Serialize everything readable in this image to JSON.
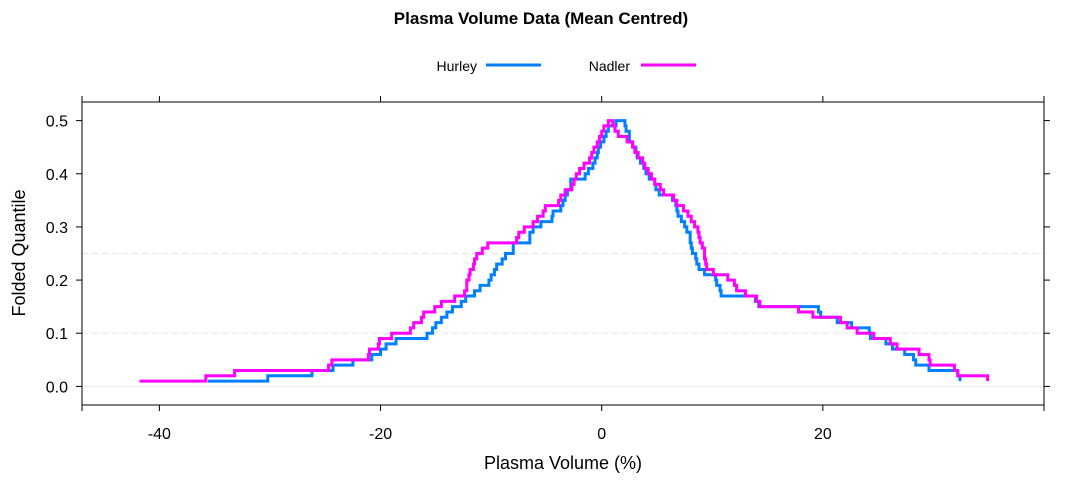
{
  "chart_data": {
    "type": "line",
    "title": "Plasma Volume Data (Mean Centred)",
    "xlabel": "Plasma Volume (%)",
    "ylabel": "Folded Quantile",
    "xlim": [
      -47,
      40
    ],
    "ylim": [
      -0.035,
      0.535
    ],
    "x_ticks": [
      -40,
      -20,
      0,
      20
    ],
    "y_ticks": [
      0.0,
      0.1,
      0.2,
      0.3,
      0.4,
      0.5
    ],
    "x_tick_labels": [
      "-40",
      "-20",
      "0",
      "20"
    ],
    "y_tick_labels": [
      "0.0",
      "0.1",
      "0.2",
      "0.3",
      "0.4",
      "0.5"
    ],
    "reference_lines_y": [
      0,
      0.1,
      0.25
    ],
    "legend_position": "top",
    "colors": {
      "Hurley": "#0080ff",
      "Nadler": "#ff00ff",
      "reference": "#e6e6e6",
      "axis": "#000000"
    },
    "series": [
      {
        "name": "Hurley",
        "points": [
          [
            -35.6,
            0.01
          ],
          [
            -30.2,
            0.02
          ],
          [
            -26.2,
            0.03
          ],
          [
            -24.3,
            0.04
          ],
          [
            -22.5,
            0.05
          ],
          [
            -20.8,
            0.06
          ],
          [
            -20.0,
            0.07
          ],
          [
            -19.5,
            0.08
          ],
          [
            -18.6,
            0.09
          ],
          [
            -15.8,
            0.1
          ],
          [
            -15.3,
            0.11
          ],
          [
            -15.0,
            0.12
          ],
          [
            -14.5,
            0.13
          ],
          [
            -14.0,
            0.14
          ],
          [
            -13.5,
            0.15
          ],
          [
            -12.7,
            0.16
          ],
          [
            -12.3,
            0.17
          ],
          [
            -11.5,
            0.18
          ],
          [
            -11.0,
            0.19
          ],
          [
            -10.2,
            0.2
          ],
          [
            -10.0,
            0.21
          ],
          [
            -9.7,
            0.22
          ],
          [
            -9.5,
            0.23
          ],
          [
            -9.0,
            0.24
          ],
          [
            -8.7,
            0.25
          ],
          [
            -8.0,
            0.26
          ],
          [
            -8.0,
            0.27
          ],
          [
            -6.5,
            0.28
          ],
          [
            -6.5,
            0.29
          ],
          [
            -6.2,
            0.3
          ],
          [
            -5.5,
            0.31
          ],
          [
            -4.5,
            0.32
          ],
          [
            -4.4,
            0.33
          ],
          [
            -3.7,
            0.34
          ],
          [
            -3.5,
            0.35
          ],
          [
            -3.3,
            0.36
          ],
          [
            -3.1,
            0.37
          ],
          [
            -2.8,
            0.38
          ],
          [
            -2.8,
            0.39
          ],
          [
            -1.5,
            0.4
          ],
          [
            -1.2,
            0.41
          ],
          [
            -0.8,
            0.42
          ],
          [
            -0.6,
            0.43
          ],
          [
            -0.4,
            0.44
          ],
          [
            -0.3,
            0.45
          ],
          [
            -0.1,
            0.46
          ],
          [
            0.2,
            0.47
          ],
          [
            0.4,
            0.48
          ],
          [
            0.6,
            0.49
          ],
          [
            1.3,
            0.5
          ],
          [
            2.1,
            0.49
          ],
          [
            2.2,
            0.48
          ],
          [
            2.5,
            0.47
          ],
          [
            2.5,
            0.46
          ],
          [
            2.8,
            0.45
          ],
          [
            3.1,
            0.44
          ],
          [
            3.2,
            0.43
          ],
          [
            3.5,
            0.42
          ],
          [
            3.8,
            0.41
          ],
          [
            4.0,
            0.4
          ],
          [
            4.3,
            0.39
          ],
          [
            4.8,
            0.38
          ],
          [
            4.9,
            0.37
          ],
          [
            5.2,
            0.36
          ],
          [
            6.4,
            0.35
          ],
          [
            6.7,
            0.34
          ],
          [
            6.8,
            0.33
          ],
          [
            6.9,
            0.32
          ],
          [
            7.2,
            0.31
          ],
          [
            7.5,
            0.3
          ],
          [
            7.7,
            0.29
          ],
          [
            8.0,
            0.28
          ],
          [
            8.0,
            0.27
          ],
          [
            8.1,
            0.26
          ],
          [
            8.2,
            0.25
          ],
          [
            8.5,
            0.24
          ],
          [
            8.6,
            0.23
          ],
          [
            8.8,
            0.22
          ],
          [
            9.3,
            0.21
          ],
          [
            10.3,
            0.2
          ],
          [
            10.4,
            0.19
          ],
          [
            10.7,
            0.18
          ],
          [
            10.8,
            0.17
          ],
          [
            13.9,
            0.16
          ],
          [
            14.2,
            0.15
          ],
          [
            19.6,
            0.14
          ],
          [
            19.8,
            0.13
          ],
          [
            21.3,
            0.12
          ],
          [
            22.6,
            0.11
          ],
          [
            24.2,
            0.1
          ],
          [
            24.3,
            0.09
          ],
          [
            25.7,
            0.08
          ],
          [
            26.3,
            0.07
          ],
          [
            27.4,
            0.06
          ],
          [
            28.2,
            0.05
          ],
          [
            28.4,
            0.04
          ],
          [
            29.6,
            0.03
          ],
          [
            32.2,
            0.02
          ],
          [
            32.4,
            0.01
          ]
        ]
      },
      {
        "name": "Nadler",
        "points": [
          [
            -41.8,
            0.01
          ],
          [
            -35.8,
            0.02
          ],
          [
            -33.2,
            0.03
          ],
          [
            -24.7,
            0.04
          ],
          [
            -24.4,
            0.05
          ],
          [
            -21.1,
            0.06
          ],
          [
            -21.0,
            0.07
          ],
          [
            -20.2,
            0.08
          ],
          [
            -20.1,
            0.09
          ],
          [
            -19.0,
            0.1
          ],
          [
            -17.3,
            0.11
          ],
          [
            -17.0,
            0.12
          ],
          [
            -16.3,
            0.13
          ],
          [
            -16.1,
            0.14
          ],
          [
            -15.1,
            0.15
          ],
          [
            -14.5,
            0.16
          ],
          [
            -13.3,
            0.17
          ],
          [
            -12.4,
            0.18
          ],
          [
            -12.2,
            0.19
          ],
          [
            -12.2,
            0.2
          ],
          [
            -12.0,
            0.21
          ],
          [
            -11.9,
            0.22
          ],
          [
            -11.6,
            0.23
          ],
          [
            -11.5,
            0.24
          ],
          [
            -11.3,
            0.25
          ],
          [
            -10.8,
            0.26
          ],
          [
            -10.3,
            0.27
          ],
          [
            -7.7,
            0.28
          ],
          [
            -7.5,
            0.29
          ],
          [
            -7.0,
            0.3
          ],
          [
            -6.2,
            0.31
          ],
          [
            -5.8,
            0.32
          ],
          [
            -5.3,
            0.33
          ],
          [
            -5.1,
            0.34
          ],
          [
            -3.9,
            0.35
          ],
          [
            -3.7,
            0.36
          ],
          [
            -3.3,
            0.37
          ],
          [
            -2.7,
            0.38
          ],
          [
            -2.5,
            0.39
          ],
          [
            -2.3,
            0.4
          ],
          [
            -2.0,
            0.41
          ],
          [
            -1.6,
            0.42
          ],
          [
            -1.1,
            0.43
          ],
          [
            -0.9,
            0.44
          ],
          [
            -0.7,
            0.45
          ],
          [
            -0.4,
            0.46
          ],
          [
            -0.2,
            0.47
          ],
          [
            0.0,
            0.48
          ],
          [
            0.2,
            0.49
          ],
          [
            0.6,
            0.5
          ],
          [
            1.0,
            0.49
          ],
          [
            1.2,
            0.48
          ],
          [
            1.5,
            0.47
          ],
          [
            2.3,
            0.46
          ],
          [
            2.8,
            0.45
          ],
          [
            3.0,
            0.44
          ],
          [
            3.3,
            0.43
          ],
          [
            3.7,
            0.42
          ],
          [
            3.9,
            0.41
          ],
          [
            4.2,
            0.4
          ],
          [
            4.5,
            0.39
          ],
          [
            4.8,
            0.38
          ],
          [
            5.3,
            0.37
          ],
          [
            5.6,
            0.36
          ],
          [
            6.5,
            0.35
          ],
          [
            6.8,
            0.34
          ],
          [
            7.4,
            0.33
          ],
          [
            7.8,
            0.32
          ],
          [
            8.1,
            0.31
          ],
          [
            8.4,
            0.3
          ],
          [
            8.7,
            0.29
          ],
          [
            8.8,
            0.28
          ],
          [
            8.9,
            0.27
          ],
          [
            9.1,
            0.26
          ],
          [
            9.3,
            0.25
          ],
          [
            9.3,
            0.24
          ],
          [
            9.4,
            0.23
          ],
          [
            9.5,
            0.22
          ],
          [
            10.1,
            0.21
          ],
          [
            11.4,
            0.2
          ],
          [
            12.0,
            0.19
          ],
          [
            12.2,
            0.18
          ],
          [
            13.0,
            0.17
          ],
          [
            14.0,
            0.16
          ],
          [
            14.3,
            0.15
          ],
          [
            17.8,
            0.14
          ],
          [
            19.1,
            0.13
          ],
          [
            21.6,
            0.12
          ],
          [
            22.2,
            0.11
          ],
          [
            23.1,
            0.1
          ],
          [
            24.6,
            0.09
          ],
          [
            26.1,
            0.08
          ],
          [
            26.7,
            0.07
          ],
          [
            28.7,
            0.06
          ],
          [
            29.6,
            0.05
          ],
          [
            29.7,
            0.04
          ],
          [
            31.9,
            0.03
          ],
          [
            32.2,
            0.02
          ],
          [
            34.9,
            0.01
          ]
        ]
      }
    ]
  }
}
